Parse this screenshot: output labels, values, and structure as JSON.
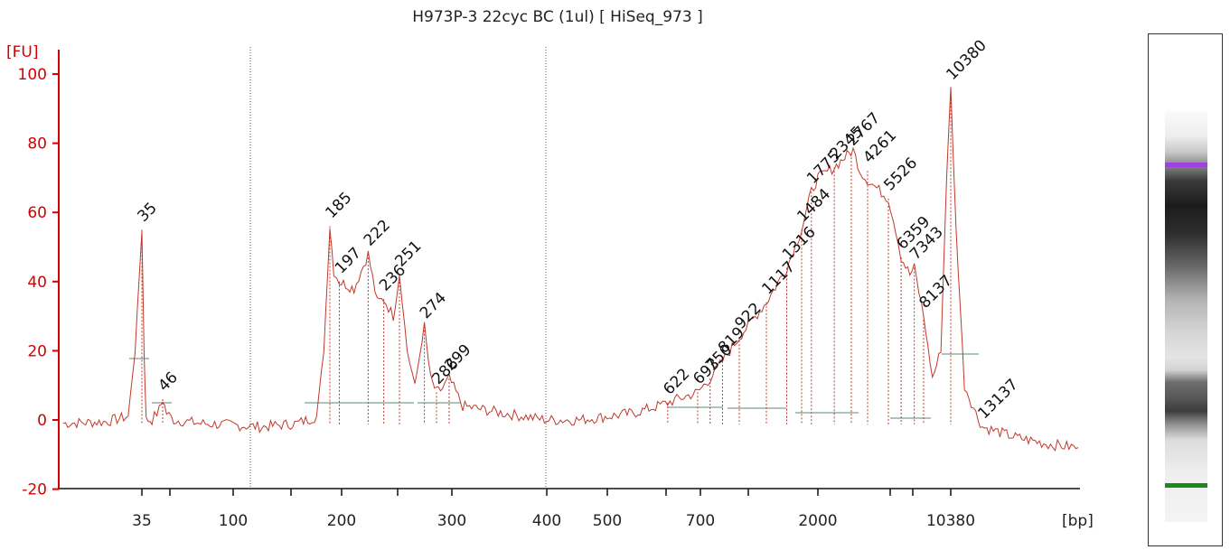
{
  "chart_data": {
    "type": "line",
    "title": "H973P-3 22cyc BC (1ul)  [ HiSeq_973 ]",
    "ylabel": "[FU]",
    "xlabel": "[bp]",
    "ylim": [
      -20,
      100
    ],
    "yticks": [
      -20,
      0,
      20,
      40,
      60,
      80,
      100
    ],
    "x_scale": "nonlinear (migration)",
    "xticks": [
      "35",
      "100",
      "200",
      "300",
      "400",
      "500",
      "700",
      "2000",
      "10380"
    ],
    "series": [
      {
        "points": [
          [
            25,
            -1
          ],
          [
            30,
            -0.5
          ],
          [
            33,
            1
          ],
          [
            34,
            20
          ],
          [
            35,
            55
          ],
          [
            36,
            20
          ],
          [
            37,
            0
          ],
          [
            40,
            0
          ],
          [
            44,
            3
          ],
          [
            46,
            6
          ],
          [
            48,
            2
          ],
          [
            52,
            0
          ],
          [
            70,
            -1
          ],
          [
            100,
            -1.5
          ],
          [
            120,
            -2
          ],
          [
            150,
            -1
          ],
          [
            170,
            1
          ],
          [
            178,
            20
          ],
          [
            185,
            56
          ],
          [
            190,
            43
          ],
          [
            197,
            40
          ],
          [
            210,
            38
          ],
          [
            222,
            48
          ],
          [
            230,
            34
          ],
          [
            236,
            35
          ],
          [
            245,
            30
          ],
          [
            251,
            42
          ],
          [
            258,
            20
          ],
          [
            265,
            10
          ],
          [
            274,
            27
          ],
          [
            280,
            12
          ],
          [
            286,
            8
          ],
          [
            292,
            9
          ],
          [
            299,
            12
          ],
          [
            310,
            4
          ],
          [
            350,
            2
          ],
          [
            400,
            0
          ],
          [
            450,
            0
          ],
          [
            500,
            1
          ],
          [
            550,
            2
          ],
          [
            600,
            4
          ],
          [
            622,
            5
          ],
          [
            693,
            8
          ],
          [
            750,
            12
          ],
          [
            819,
            17
          ],
          [
            922,
            24
          ],
          [
            1117,
            34
          ],
          [
            1316,
            44
          ],
          [
            1484,
            55
          ],
          [
            1775,
            66
          ],
          [
            2000,
            70
          ],
          [
            2345,
            73
          ],
          [
            2600,
            76
          ],
          [
            2900,
            78
          ],
          [
            3500,
            72
          ],
          [
            4000,
            70
          ],
          [
            5526,
            64
          ],
          [
            6000,
            55
          ],
          [
            6359,
            47
          ],
          [
            7000,
            42
          ],
          [
            7343,
            44
          ],
          [
            8137,
            30
          ],
          [
            8800,
            12
          ],
          [
            9500,
            20
          ],
          [
            10000,
            70
          ],
          [
            10380,
            96
          ],
          [
            10800,
            55
          ],
          [
            11500,
            10
          ],
          [
            12500,
            2
          ],
          [
            13137,
            -2
          ],
          [
            14500,
            -5
          ],
          [
            16000,
            -7
          ],
          [
            17500,
            -8
          ]
        ]
      }
    ],
    "peaks": [
      {
        "label": "35",
        "x": 35,
        "y": 55,
        "color": "#2d8a2d"
      },
      {
        "label": "46",
        "x": 46,
        "y": 6
      },
      {
        "label": "185",
        "x": 185,
        "y": 56
      },
      {
        "label": "197",
        "x": 197,
        "y": 40
      },
      {
        "label": "222",
        "x": 222,
        "y": 48
      },
      {
        "label": "236",
        "x": 236,
        "y": 35
      },
      {
        "label": "251",
        "x": 251,
        "y": 42
      },
      {
        "label": "274",
        "x": 274,
        "y": 27
      },
      {
        "label": "286",
        "x": 286,
        "y": 8
      },
      {
        "label": "299",
        "x": 299,
        "y": 12
      },
      {
        "label": "622",
        "x": 622,
        "y": 5
      },
      {
        "label": "693",
        "x": 693,
        "y": 8
      },
      {
        "label": "750",
        "x": 750,
        "y": 12
      },
      {
        "label": "819",
        "x": 819,
        "y": 17
      },
      {
        "label": "922",
        "x": 922,
        "y": 24
      },
      {
        "label": "1117",
        "x": 1117,
        "y": 34
      },
      {
        "label": "1316",
        "x": 1316,
        "y": 44
      },
      {
        "label": "1484",
        "x": 1484,
        "y": 55
      },
      {
        "label": "1775",
        "x": 1775,
        "y": 66
      },
      {
        "label": "2345",
        "x": 2345,
        "y": 73
      },
      {
        "label": "2767",
        "x": 2767,
        "y": 77
      },
      {
        "label": "4261",
        "x": 4261,
        "y": 72
      },
      {
        "label": "5526",
        "x": 5526,
        "y": 64
      },
      {
        "label": "6359",
        "x": 6359,
        "y": 47
      },
      {
        "label": "7343",
        "x": 7343,
        "y": 44
      },
      {
        "label": "8137",
        "x": 8137,
        "y": 30
      },
      {
        "label": "10380",
        "x": 10380,
        "y": 96,
        "color": "#a040e0"
      },
      {
        "label": "13137",
        "x": 13137,
        "y": -2
      }
    ],
    "colors": {
      "trace": "#c0392b",
      "axis": "#d40000",
      "lower_marker": "#2d8a2d",
      "upper_marker": "#a040e0"
    },
    "gel_bands": [
      {
        "name": "upper-marker",
        "color": "#a040e0"
      },
      {
        "name": "lower-marker",
        "color": "#1a8a1a"
      }
    ]
  }
}
